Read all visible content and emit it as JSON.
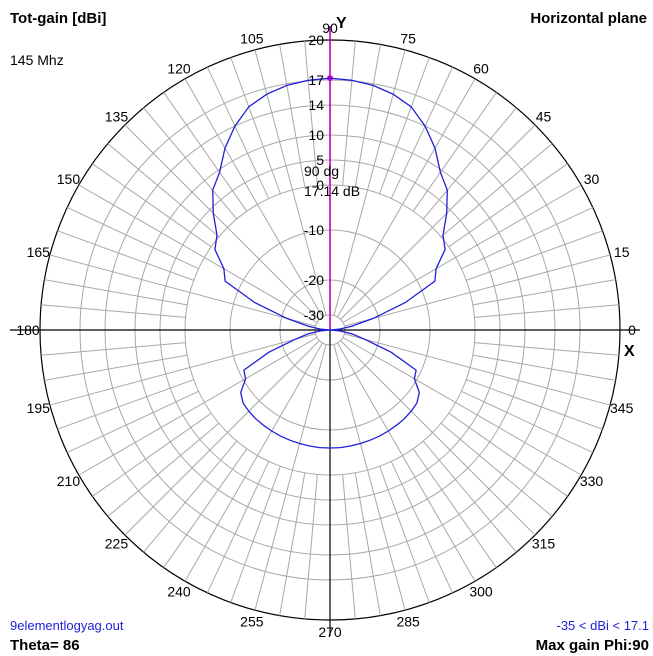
{
  "header": {
    "left_title": "Tot-gain [dBi]",
    "right_title": "Horizontal plane",
    "frequency": "145 Mhz"
  },
  "footer": {
    "filename": "9elementlogyag.out",
    "theta": "Theta= 86",
    "range": "-35 < dBi < 17.1",
    "max_gain": "Max gain Phi:90"
  },
  "colors": {
    "pattern": "#1f1fd8",
    "marker": "#d000d0",
    "grid": "#a8a8a8",
    "axes": "#000000"
  },
  "chart_data": {
    "type": "polar",
    "angle_unit": "degrees",
    "angle_ticks": [
      "0",
      "15",
      "30",
      "45",
      "60",
      "75",
      "90",
      "105",
      "120",
      "135",
      "150",
      "165",
      "180",
      "195",
      "210",
      "225",
      "240",
      "255",
      "270",
      "285",
      "300",
      "315",
      "330",
      "345"
    ],
    "radial_ticks": [
      "20",
      "17",
      "14",
      "10",
      "5",
      "0",
      "-10",
      "-20",
      "-30"
    ],
    "radial_tick_values": [
      20,
      17,
      14,
      10,
      5,
      0,
      -10,
      -20,
      -30
    ],
    "radial_range_dbi": [
      -35,
      20
    ],
    "axis_labels": {
      "x": "X",
      "y": "Y"
    },
    "max_marker": {
      "angle_label": "90 dg",
      "gain_label": "17.14 dB",
      "angle_deg": 90,
      "gain_dbi": 17.14
    },
    "series": [
      {
        "angles_deg": [
          0,
          5,
          10,
          15,
          20,
          25,
          30,
          35,
          40,
          45,
          50,
          55,
          60,
          65,
          70,
          75,
          80,
          85,
          90,
          95,
          100,
          105,
          110,
          115,
          120,
          125,
          130,
          135,
          140,
          145,
          150,
          155,
          160,
          165,
          170,
          175,
          180,
          185,
          190,
          195,
          200,
          205,
          210,
          215,
          220,
          225,
          230,
          235,
          240,
          245,
          250,
          255,
          260,
          265,
          270,
          275,
          280,
          285,
          290,
          295,
          300,
          305,
          310,
          315,
          320,
          325,
          330,
          335,
          340,
          345,
          350,
          355
        ],
        "gain_dbi": [
          -35,
          -32,
          -28,
          -21.5,
          -14,
          -6.5,
          -5,
          -1,
          0.5,
          4,
          7.5,
          9.5,
          12,
          14,
          15.5,
          16.3,
          16.8,
          17.05,
          17.14,
          17.05,
          16.8,
          16.3,
          15.5,
          14,
          12,
          9.5,
          7.5,
          4,
          0.5,
          -1,
          -5,
          -6.5,
          -14,
          -21.5,
          -28,
          -32,
          -35,
          -32,
          -28,
          -24,
          -17,
          -11,
          -10.5,
          -8,
          -7,
          -6.7,
          -6.5,
          -6.4,
          -6.3,
          -6.2,
          -6.15,
          -6.1,
          -6.05,
          -6.0,
          -6.0,
          -6.0,
          -6.05,
          -6.1,
          -6.15,
          -6.2,
          -6.3,
          -6.4,
          -6.5,
          -6.7,
          -7,
          -8,
          -10.5,
          -11,
          -17,
          -24,
          -28,
          -32
        ]
      }
    ]
  }
}
